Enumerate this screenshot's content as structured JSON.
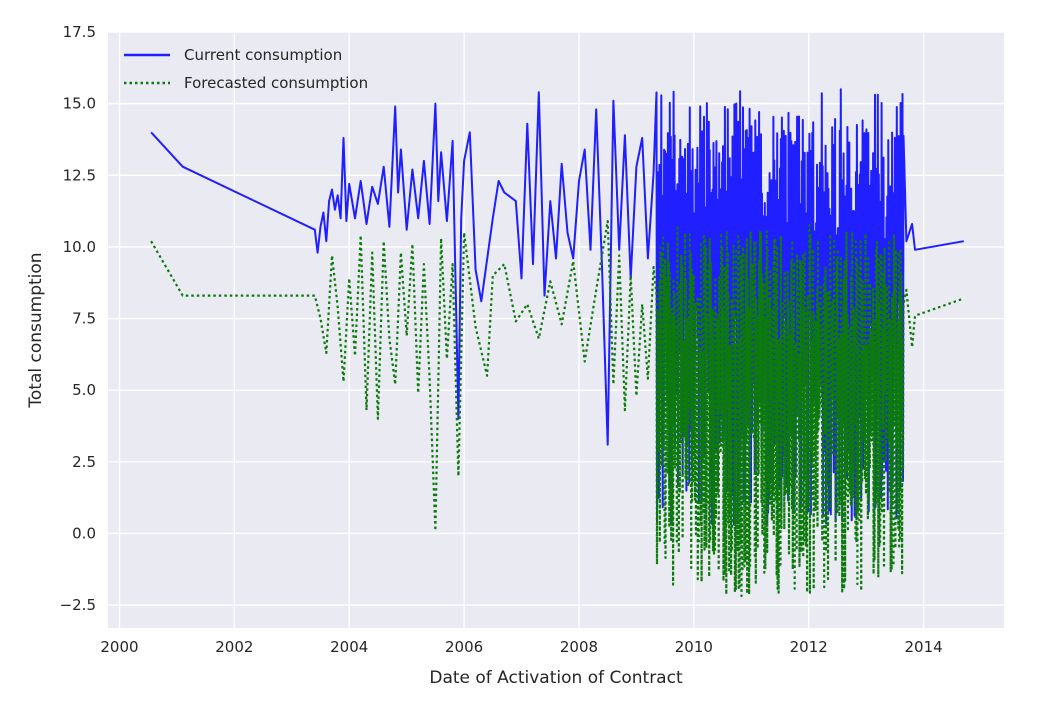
{
  "chart_data": {
    "type": "line",
    "title": "",
    "xlabel": "Date of Activation of Contract",
    "ylabel": "Total consumption",
    "xlim": [
      1999.8,
      2015.4
    ],
    "ylim": [
      -3.3,
      17.5
    ],
    "xticks": [
      2000,
      2002,
      2004,
      2006,
      2008,
      2010,
      2012,
      2014
    ],
    "xtick_labels": [
      "2000",
      "2002",
      "2004",
      "2006",
      "2008",
      "2010",
      "2012",
      "2014"
    ],
    "yticks": [
      -2.5,
      0.0,
      2.5,
      5.0,
      7.5,
      10.0,
      12.5,
      15.0,
      17.5
    ],
    "ytick_labels": [
      "−2.5",
      "0.0",
      "2.5",
      "5.0",
      "7.5",
      "10.0",
      "12.5",
      "15.0",
      "17.5"
    ],
    "grid": true,
    "legend_position": "top-left",
    "background": "#eaeaf2",
    "series": [
      {
        "name": "Current consumption",
        "color": "#1f1fff",
        "style": "solid",
        "x": [
          2000.55,
          2001.1,
          2003.4,
          2003.45,
          2003.5,
          2003.55,
          2003.6,
          2003.65,
          2003.7,
          2003.75,
          2003.8,
          2003.85,
          2003.9,
          2003.95,
          2004.0,
          2004.1,
          2004.2,
          2004.3,
          2004.4,
          2004.5,
          2004.6,
          2004.7,
          2004.8,
          2004.85,
          2004.9,
          2005.0,
          2005.1,
          2005.2,
          2005.3,
          2005.4,
          2005.5,
          2005.55,
          2005.6,
          2005.7,
          2005.8,
          2005.9,
          2005.95,
          2006.0,
          2006.1,
          2006.2,
          2006.3,
          2006.5,
          2006.6,
          2006.7,
          2006.9,
          2007.0,
          2007.1,
          2007.2,
          2007.3,
          2007.4,
          2007.5,
          2007.6,
          2007.7,
          2007.8,
          2007.9,
          2008.0,
          2008.1,
          2008.2,
          2008.3,
          2008.4,
          2008.5,
          2008.6,
          2008.7,
          2008.8,
          2008.9,
          2009.0,
          2009.1,
          2009.2,
          2009.3,
          2009.4,
          2013.6,
          2013.7,
          2013.8,
          2013.85,
          2014.7
        ],
        "y": [
          14.0,
          12.8,
          10.6,
          9.8,
          10.7,
          11.2,
          10.2,
          11.6,
          12.0,
          11.3,
          11.8,
          11.0,
          13.8,
          10.9,
          12.2,
          11.0,
          12.3,
          10.8,
          12.1,
          11.5,
          12.8,
          10.7,
          14.9,
          11.9,
          13.4,
          10.6,
          12.7,
          11.0,
          13.0,
          10.8,
          15.0,
          11.6,
          13.3,
          10.9,
          13.7,
          4.0,
          11.0,
          13.0,
          14.0,
          9.2,
          8.1,
          11.0,
          12.3,
          11.9,
          11.6,
          8.9,
          14.3,
          9.4,
          15.4,
          8.3,
          11.6,
          9.6,
          12.9,
          10.5,
          9.6,
          12.3,
          13.4,
          9.9,
          14.8,
          9.4,
          3.1,
          15.1,
          9.9,
          13.9,
          8.9,
          12.8,
          13.8,
          9.6,
          12.6,
          9.7,
          9.0,
          10.2,
          10.8,
          9.9,
          10.2
        ],
        "dense_band": {
          "x_start": 2009.35,
          "x_end": 2013.65,
          "y_min": 0.3,
          "y_max": 15.5
        }
      },
      {
        "name": "Forecasted consumption",
        "color": "#0d7a0d",
        "style": "dotted",
        "x": [
          2000.55,
          2001.1,
          2003.4,
          2003.5,
          2003.6,
          2003.7,
          2003.8,
          2003.9,
          2004.0,
          2004.1,
          2004.2,
          2004.3,
          2004.4,
          2004.5,
          2004.6,
          2004.7,
          2004.8,
          2004.9,
          2005.0,
          2005.1,
          2005.2,
          2005.3,
          2005.4,
          2005.5,
          2005.6,
          2005.7,
          2005.8,
          2005.9,
          2006.0,
          2006.2,
          2006.4,
          2006.5,
          2006.7,
          2006.9,
          2007.1,
          2007.3,
          2007.5,
          2007.7,
          2007.9,
          2008.1,
          2008.3,
          2008.5,
          2008.6,
          2008.7,
          2008.8,
          2008.9,
          2009.0,
          2009.1,
          2009.2,
          2009.3,
          2009.4,
          2013.6,
          2013.7,
          2013.8,
          2013.85,
          2014.7
        ],
        "y": [
          10.2,
          8.3,
          8.3,
          7.5,
          6.3,
          9.7,
          7.9,
          5.3,
          8.9,
          6.2,
          10.4,
          4.3,
          9.8,
          4.0,
          10.2,
          6.8,
          5.2,
          9.8,
          6.9,
          10.1,
          4.9,
          9.4,
          5.4,
          0.1,
          10.3,
          6.1,
          9.4,
          2.0,
          10.5,
          7.2,
          5.5,
          9.0,
          9.4,
          7.4,
          8.0,
          6.8,
          8.8,
          7.3,
          9.5,
          6.0,
          8.5,
          10.9,
          5.2,
          9.7,
          4.3,
          9.0,
          4.8,
          8.0,
          5.4,
          9.3,
          6.6,
          6.8,
          8.5,
          6.5,
          7.6,
          8.2
        ],
        "dense_band": {
          "x_start": 2009.35,
          "x_end": 2013.65,
          "y_min": -2.2,
          "y_max": 10.8
        }
      }
    ]
  }
}
